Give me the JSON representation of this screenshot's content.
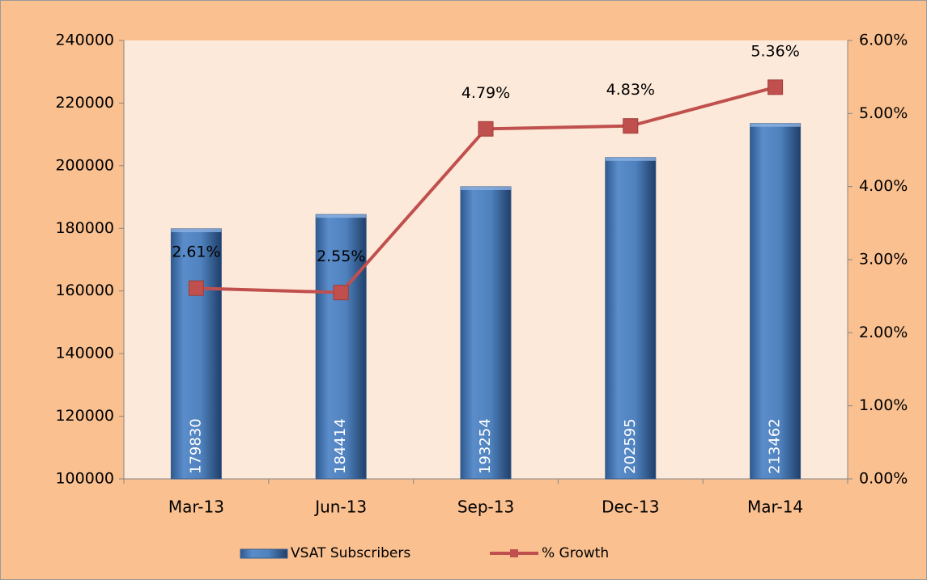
{
  "chart_data": {
    "type": "bar",
    "categories": [
      "Mar-13",
      "Jun-13",
      "Sep-13",
      "Dec-13",
      "Mar-14"
    ],
    "series": [
      {
        "name": "VSAT Subscribers",
        "color": "#4f81bd",
        "values": [
          179830,
          184414,
          193254,
          202595,
          213462
        ]
      },
      {
        "name": "% Growth",
        "type": "line",
        "axis": "y2",
        "color": "#c0504d",
        "values": [
          2.61,
          2.55,
          4.79,
          4.83,
          5.36
        ],
        "value_labels": [
          "2.61%",
          "2.55%",
          "4.79%",
          "4.83%",
          "5.36%"
        ]
      }
    ],
    "ylim": [
      100000,
      240000
    ],
    "yticks": [
      100000,
      120000,
      140000,
      160000,
      180000,
      200000,
      220000,
      240000
    ],
    "y2lim": [
      0,
      6
    ],
    "y2ticks": [
      {
        "value": 0,
        "label": "0.00%"
      },
      {
        "value": 1,
        "label": "1.00%"
      },
      {
        "value": 2,
        "label": "2.00%"
      },
      {
        "value": 3,
        "label": "3.00%"
      },
      {
        "value": 4,
        "label": "4.00%"
      },
      {
        "value": 5,
        "label": "5.00%"
      },
      {
        "value": 6,
        "label": "6.00%"
      }
    ],
    "legend": "bottom"
  }
}
